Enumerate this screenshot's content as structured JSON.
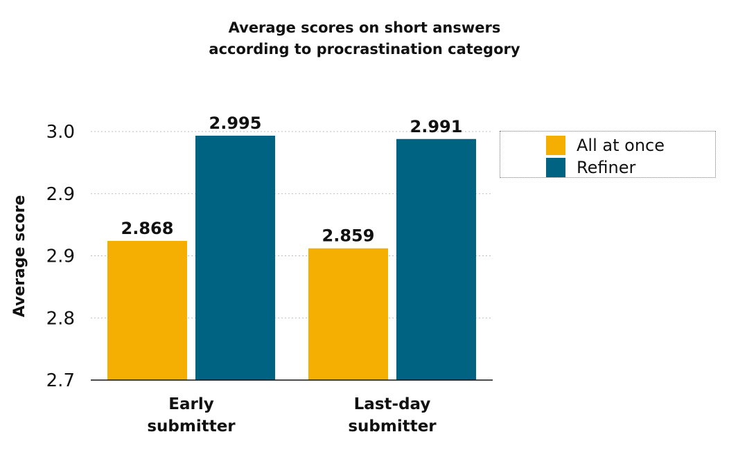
{
  "chart_data": {
    "type": "bar",
    "title": [
      "Average scores on short answers",
      "according to procrastination category"
    ],
    "ylabel": "Average score",
    "ytick_labels": [
      "2.7",
      "2.8",
      "2.9",
      "2.9",
      "3.0"
    ],
    "ylim": [
      2.7,
      3.0
    ],
    "grid": true,
    "legend_position": "right",
    "categories": [
      [
        "Early",
        "submitter"
      ],
      [
        "Last-day",
        "submitter"
      ]
    ],
    "series": [
      {
        "name": "All at once",
        "color": "#F5AF02",
        "values": [
          2.868,
          2.859
        ],
        "labels": [
          "2.868",
          "2.859"
        ]
      },
      {
        "name": "Refiner",
        "color": "#006381",
        "values": [
          2.995,
          2.991
        ],
        "labels": [
          "2.995",
          "2.991"
        ]
      }
    ]
  }
}
